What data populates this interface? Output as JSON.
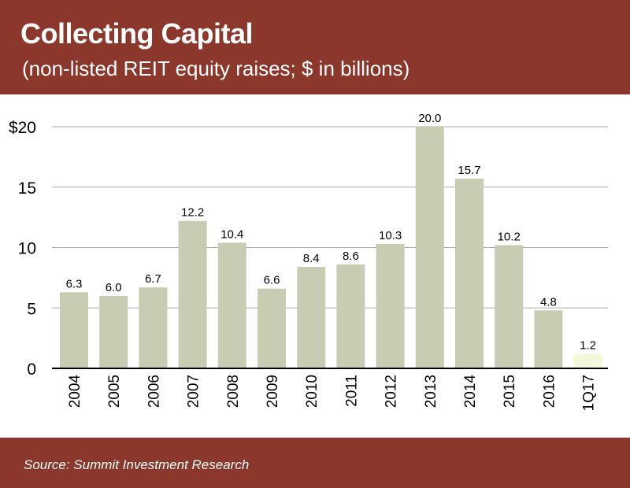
{
  "header": {
    "title": "Collecting Capital",
    "subtitle": "(non-listed REIT equity raises; $ in billions)"
  },
  "footer": {
    "source": "Source: Summit Investment Research"
  },
  "colors": {
    "background": "#8b372b",
    "bar": "#c9ccb3",
    "bar_highlight": "#f4f7d9",
    "gridline": "#aaaaaa",
    "baseline": "#000000"
  },
  "chart_data": {
    "type": "bar",
    "categories": [
      "2004",
      "2005",
      "2006",
      "2007",
      "2008",
      "2009",
      "2010",
      "2011",
      "2012",
      "2013",
      "2014",
      "2015",
      "2016",
      "1Q17"
    ],
    "values": [
      6.3,
      6.0,
      6.7,
      12.2,
      10.4,
      6.6,
      8.4,
      8.6,
      10.3,
      20.0,
      15.7,
      10.2,
      4.8,
      1.2
    ],
    "value_labels": [
      "6.3",
      "6.0",
      "6.7",
      "12.2",
      "10.4",
      "6.6",
      "8.4",
      "8.6",
      "10.3",
      "20.0",
      "15.7",
      "10.2",
      "4.8",
      "1.2"
    ],
    "highlight_categories": [
      "1Q17"
    ],
    "yticks": [
      0,
      5,
      10,
      15,
      20
    ],
    "ytick_labels": [
      "0",
      "5",
      "10",
      "15",
      "$20"
    ],
    "ylim": [
      0,
      20
    ],
    "grid": true,
    "xlabel": "",
    "ylabel": ""
  }
}
